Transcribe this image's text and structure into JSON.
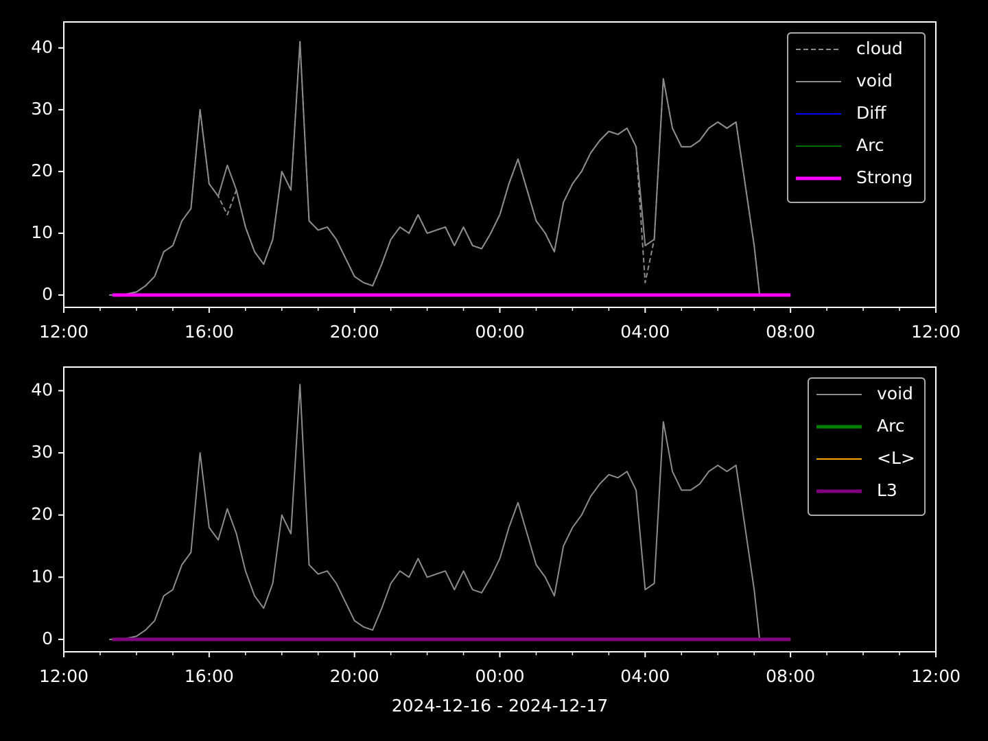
{
  "chart_data": [
    {
      "type": "line",
      "xlim": [
        12,
        36
      ],
      "ylim": [
        -2,
        44.2
      ],
      "xticks": [
        {
          "value": 12,
          "label": "12:00"
        },
        {
          "value": 16,
          "label": "16:00"
        },
        {
          "value": 20,
          "label": "20:00"
        },
        {
          "value": 24,
          "label": "00:00"
        },
        {
          "value": 28,
          "label": "04:00"
        },
        {
          "value": 32,
          "label": "08:00"
        },
        {
          "value": 36,
          "label": "12:00"
        }
      ],
      "xminorticks": [
        13,
        14,
        15,
        17,
        18,
        19,
        21,
        22,
        23,
        25,
        26,
        27,
        29,
        30,
        31,
        33,
        34,
        35
      ],
      "yticks": [
        0,
        10,
        20,
        30,
        40
      ],
      "legend": "upper right",
      "series": [
        {
          "name": "cloud",
          "color": "#8c8c8c",
          "linestyle": "dashed",
          "linewidth": 2,
          "x": [
            13.25,
            13.5,
            13.75,
            14,
            14.25,
            14.5,
            14.75,
            15,
            15.25,
            15.5,
            15.75,
            16,
            16.25,
            16.5,
            16.75,
            17,
            17.25,
            17.5,
            17.75,
            18,
            18.25,
            18.5,
            18.75,
            19,
            19.25,
            19.5,
            19.75,
            20,
            20.25,
            20.5,
            20.75,
            21,
            21.25,
            21.5,
            21.75,
            22,
            22.25,
            22.5,
            22.75,
            23,
            23.25,
            23.5,
            23.75,
            24,
            24.25,
            24.5,
            24.75,
            25,
            25.25,
            25.5,
            25.75,
            26,
            26.25,
            26.5,
            26.75,
            27,
            27.25,
            27.5,
            27.75,
            28,
            28.25,
            28.5,
            28.75,
            29,
            29.25,
            29.5,
            29.75,
            30,
            30.25,
            30.5,
            30.75,
            31,
            31.15
          ],
          "values": [
            0,
            0,
            0.2,
            0.5,
            1.5,
            3,
            7,
            8,
            12,
            14,
            30,
            18,
            16,
            13,
            17,
            11,
            7,
            5,
            9,
            20,
            17,
            41,
            12,
            10.5,
            11,
            9,
            6,
            3,
            2,
            1.5,
            5,
            9,
            11,
            10,
            13,
            10,
            10.5,
            11,
            8,
            11,
            8,
            7.5,
            10,
            13,
            18,
            22,
            17,
            12,
            10,
            7,
            15,
            18,
            20,
            23,
            25,
            26.5,
            26,
            27,
            24,
            2,
            9,
            35,
            27,
            24,
            24,
            25,
            27,
            28,
            27,
            28,
            18,
            8,
            0
          ]
        },
        {
          "name": "void",
          "color": "#8c8c8c",
          "linewidth": 2,
          "x": [
            13.25,
            13.5,
            13.75,
            14,
            14.25,
            14.5,
            14.75,
            15,
            15.25,
            15.5,
            15.75,
            16,
            16.25,
            16.5,
            16.75,
            17,
            17.25,
            17.5,
            17.75,
            18,
            18.25,
            18.5,
            18.75,
            19,
            19.25,
            19.5,
            19.75,
            20,
            20.25,
            20.5,
            20.75,
            21,
            21.25,
            21.5,
            21.75,
            22,
            22.25,
            22.5,
            22.75,
            23,
            23.25,
            23.5,
            23.75,
            24,
            24.25,
            24.5,
            24.75,
            25,
            25.25,
            25.5,
            25.75,
            26,
            26.25,
            26.5,
            26.75,
            27,
            27.25,
            27.5,
            27.75,
            28,
            28.25,
            28.5,
            28.75,
            29,
            29.25,
            29.5,
            29.75,
            30,
            30.25,
            30.5,
            30.75,
            31,
            31.15
          ],
          "values": [
            0,
            0,
            0.2,
            0.5,
            1.5,
            3,
            7,
            8,
            12,
            14,
            30,
            18,
            16,
            21,
            17,
            11,
            7,
            5,
            9,
            20,
            17,
            41,
            12,
            10.5,
            11,
            9,
            6,
            3,
            2,
            1.5,
            5,
            9,
            11,
            10,
            13,
            10,
            10.5,
            11,
            8,
            11,
            8,
            7.5,
            10,
            13,
            18,
            22,
            17,
            12,
            10,
            7,
            15,
            18,
            20,
            23,
            25,
            26.5,
            26,
            27,
            24,
            8,
            9,
            35,
            27,
            24,
            24,
            25,
            27,
            28,
            27,
            28,
            18,
            8,
            0
          ]
        },
        {
          "name": "Diff",
          "color": "#0000ff",
          "linewidth": 2,
          "x": [
            13.33,
            32
          ],
          "values": [
            0,
            0
          ]
        },
        {
          "name": "Arc",
          "color": "#007000",
          "linewidth": 2,
          "x": [
            13.33,
            32
          ],
          "values": [
            0,
            0
          ]
        },
        {
          "name": "Strong",
          "color": "#ff00ff",
          "linewidth": 5,
          "x": [
            13.33,
            32
          ],
          "values": [
            0,
            0
          ]
        }
      ]
    },
    {
      "type": "line",
      "xlim": [
        12,
        36
      ],
      "ylim": [
        -2,
        43.8
      ],
      "xlabel": "2024-12-16 - 2024-12-17",
      "xticks": [
        {
          "value": 12,
          "label": "12:00"
        },
        {
          "value": 16,
          "label": "16:00"
        },
        {
          "value": 20,
          "label": "20:00"
        },
        {
          "value": 24,
          "label": "00:00"
        },
        {
          "value": 28,
          "label": "04:00"
        },
        {
          "value": 32,
          "label": "08:00"
        },
        {
          "value": 36,
          "label": "12:00"
        }
      ],
      "xminorticks": [
        13,
        14,
        15,
        17,
        18,
        19,
        21,
        22,
        23,
        25,
        26,
        27,
        29,
        30,
        31,
        33,
        34,
        35
      ],
      "yticks": [
        0,
        10,
        20,
        30,
        40
      ],
      "legend": "upper right",
      "series": [
        {
          "name": "void",
          "color": "#8c8c8c",
          "linewidth": 2,
          "x": [
            13.25,
            13.5,
            13.75,
            14,
            14.25,
            14.5,
            14.75,
            15,
            15.25,
            15.5,
            15.75,
            16,
            16.25,
            16.5,
            16.75,
            17,
            17.25,
            17.5,
            17.75,
            18,
            18.25,
            18.5,
            18.75,
            19,
            19.25,
            19.5,
            19.75,
            20,
            20.25,
            20.5,
            20.75,
            21,
            21.25,
            21.5,
            21.75,
            22,
            22.25,
            22.5,
            22.75,
            23,
            23.25,
            23.5,
            23.75,
            24,
            24.25,
            24.5,
            24.75,
            25,
            25.25,
            25.5,
            25.75,
            26,
            26.25,
            26.5,
            26.75,
            27,
            27.25,
            27.5,
            27.75,
            28,
            28.25,
            28.5,
            28.75,
            29,
            29.25,
            29.5,
            29.75,
            30,
            30.25,
            30.5,
            30.75,
            31,
            31.15
          ],
          "values": [
            0,
            0,
            0.2,
            0.5,
            1.5,
            3,
            7,
            8,
            12,
            14,
            30,
            18,
            16,
            21,
            17,
            11,
            7,
            5,
            9,
            20,
            17,
            41,
            12,
            10.5,
            11,
            9,
            6,
            3,
            2,
            1.5,
            5,
            9,
            11,
            10,
            13,
            10,
            10.5,
            11,
            8,
            11,
            8,
            7.5,
            10,
            13,
            18,
            22,
            17,
            12,
            10,
            7,
            15,
            18,
            20,
            23,
            25,
            26.5,
            26,
            27,
            24,
            8,
            9,
            35,
            27,
            24,
            24,
            25,
            27,
            28,
            27,
            28,
            18,
            8,
            0
          ]
        },
        {
          "name": "Arc",
          "color": "#008000",
          "linewidth": 5,
          "x": [
            13.33,
            32
          ],
          "values": [
            0,
            0
          ]
        },
        {
          "name": "<L>",
          "color": "#ffa500",
          "linewidth": 2,
          "x": [
            13.33,
            32
          ],
          "values": [
            0,
            0
          ]
        },
        {
          "name": "L3",
          "color": "#800080",
          "linewidth": 5,
          "x": [
            13.33,
            32
          ],
          "values": [
            0,
            0
          ]
        }
      ]
    }
  ]
}
